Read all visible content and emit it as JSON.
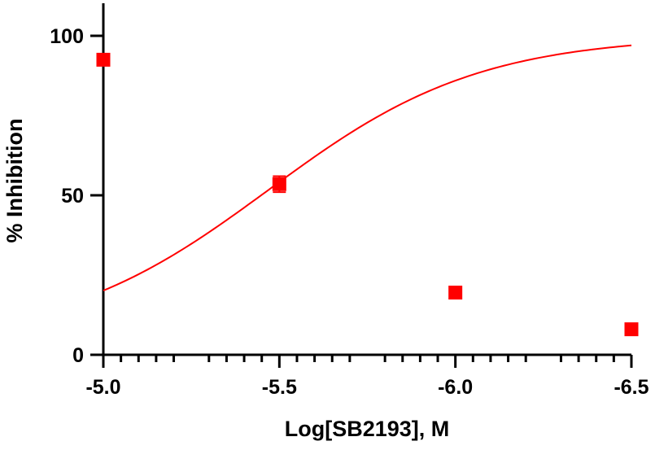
{
  "chart_data": {
    "type": "scatter",
    "title": "",
    "xlabel": "Log[SB2193], M",
    "ylabel": "% Inhibition",
    "xlim": [
      -5.0,
      -6.5
    ],
    "ylim": [
      0,
      110
    ],
    "x_ticks": [
      -5.0,
      -5.5,
      -6.0,
      -6.5
    ],
    "x_tick_labels": [
      "-5.0",
      "-5.5",
      "-6.0",
      "-6.5"
    ],
    "y_ticks": [
      0,
      50,
      100
    ],
    "y_tick_labels": [
      "0",
      "50",
      "100"
    ],
    "grid": false,
    "legend": "none",
    "series": [
      {
        "x": [
          -5.0,
          -5.5,
          -6.0,
          -6.5
        ],
        "y": [
          92.5,
          53.5,
          19.5,
          8.0
        ],
        "error": [
          1.0,
          2.5,
          1.0,
          0.8
        ],
        "color": "#ff0000",
        "marker": "square"
      }
    ],
    "fit_curve": {
      "type": "sigmoidal",
      "color": "#ff0000",
      "bottom": 3.5,
      "top": 100,
      "log_ic50": -5.47,
      "hill_slope": 1.45
    }
  }
}
